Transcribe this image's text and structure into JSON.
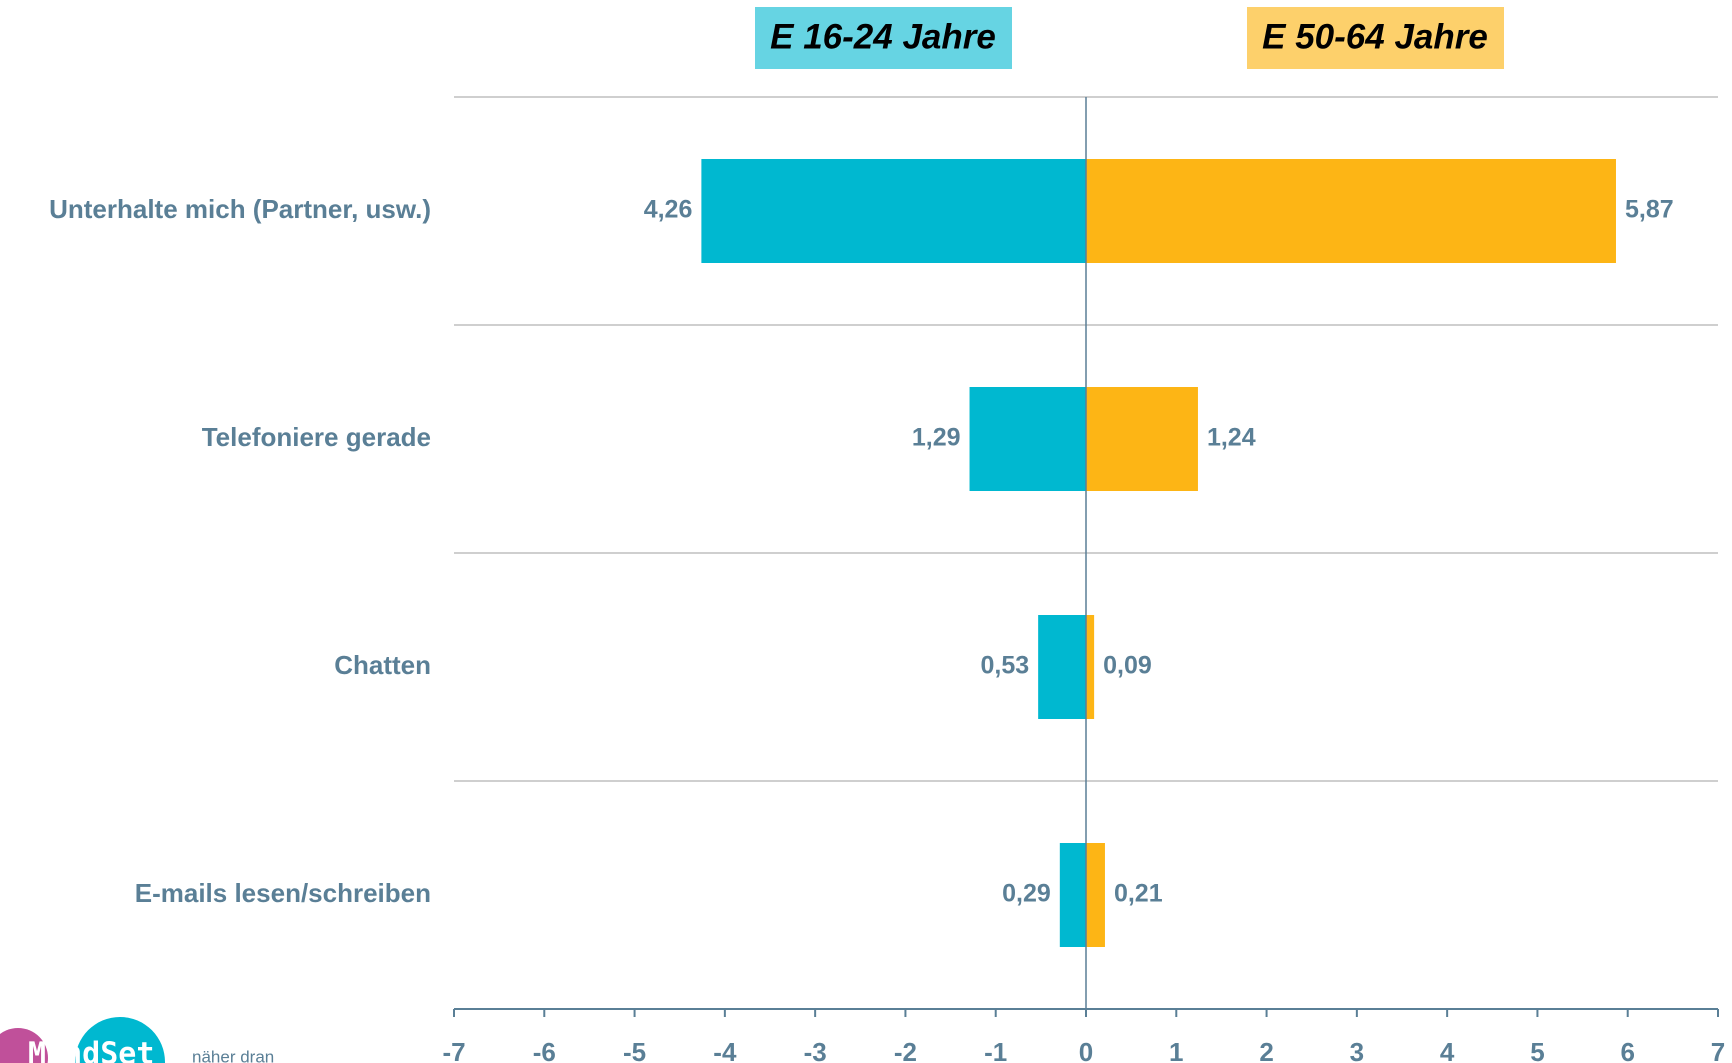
{
  "chart_data": {
    "type": "butterfly",
    "categories": [
      "Unterhalte mich (Partner, usw.)",
      "Telefoniere gerade",
      "Chatten",
      "E-mails lesen/schreiben"
    ],
    "series": [
      {
        "name": "E 16-24 Jahre",
        "color": "#00b8d0",
        "legend_color": "#66d4e3",
        "values": [
          4.26,
          1.29,
          0.53,
          0.29
        ],
        "value_labels": [
          "4,26",
          "1,29",
          "0,53",
          "0,29"
        ]
      },
      {
        "name": "E 50-64 Jahre",
        "color": "#fdb515",
        "legend_color": "#fdd06b",
        "values": [
          5.87,
          1.24,
          0.09,
          0.21
        ],
        "value_labels": [
          "5,87",
          "1,24",
          "0,09",
          "0,21"
        ]
      }
    ],
    "xlim": [
      -7,
      7
    ],
    "xticks": [
      -7,
      -6,
      -5,
      -4,
      -3,
      -2,
      -1,
      0,
      1,
      2,
      3,
      4,
      5,
      6,
      7
    ],
    "grid": true,
    "logo": "MindSet",
    "tagline": "näher dran"
  }
}
